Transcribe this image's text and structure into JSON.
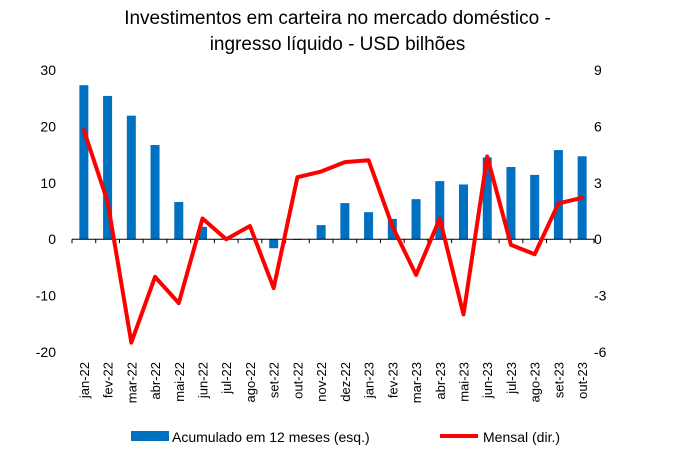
{
  "chart_data": {
    "type": "bar+line",
    "title_line1": "Investimentos em carteira no mercado doméstico -",
    "title_line2": "ingresso líquido - USD bilhões",
    "categories": [
      "jan-22",
      "fev-22",
      "mar-22",
      "abr-22",
      "mai-22",
      "jun-22",
      "jul-22",
      "ago-22",
      "set-22",
      "out-22",
      "nov-22",
      "dez-22",
      "jan-23",
      "fev-23",
      "mar-23",
      "abr-23",
      "mai-23",
      "jun-23",
      "jul-23",
      "ago-23",
      "set-23",
      "out-23"
    ],
    "series": [
      {
        "name": "Acumulado em 12 meses (esq.)",
        "type": "bar",
        "axis": "left",
        "color": "#0070C0",
        "values": [
          27.3,
          25.4,
          21.9,
          16.7,
          6.6,
          2.2,
          0.2,
          0.2,
          -1.6,
          0.0,
          2.5,
          6.4,
          4.8,
          3.6,
          7.1,
          10.3,
          9.7,
          14.5,
          12.8,
          11.4,
          15.8,
          14.7
        ]
      },
      {
        "name": "Mensal (dir.)",
        "type": "line",
        "axis": "right",
        "color": "#FF0000",
        "values": [
          5.8,
          2.0,
          -5.5,
          -2.0,
          -3.4,
          1.1,
          0.0,
          0.7,
          -2.6,
          3.3,
          3.6,
          4.1,
          4.2,
          0.7,
          -1.9,
          1.1,
          -4.0,
          4.4,
          -0.3,
          -0.8,
          1.9,
          2.2
        ]
      }
    ],
    "left_axis": {
      "min": -20,
      "max": 30,
      "ticks": [
        "30",
        "20",
        "10",
        "0",
        "-10",
        "-20"
      ]
    },
    "right_axis": {
      "min": -6,
      "max": 9,
      "ticks": [
        "9",
        "6",
        "3",
        "0",
        "-3",
        "-6"
      ]
    },
    "legend_position": "bottom",
    "grid": false
  }
}
